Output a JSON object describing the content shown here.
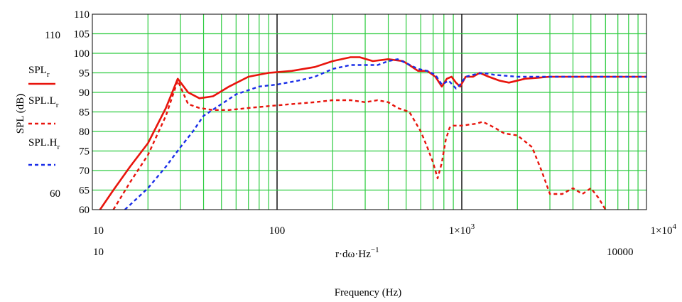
{
  "chart_data": {
    "type": "line",
    "ylabel": "SPL (dB)",
    "xlabel_expr": "r·dω·Hz",
    "xlabel_exp": "−1",
    "xlabel": "Frequency (Hz)",
    "xscale": "log",
    "xlim": [
      10,
      10000
    ],
    "ylim": [
      60,
      110
    ],
    "grid": true,
    "x_ticks": [
      {
        "value": 10,
        "label": "10"
      },
      {
        "value": 100,
        "label": "100"
      },
      {
        "value": 1000,
        "label": "1×10",
        "sup": "3"
      },
      {
        "value": 10000,
        "label": "1×10",
        "sup": "4"
      }
    ],
    "y_ticks": [
      "60",
      "65",
      "70",
      "75",
      "80",
      "85",
      "90",
      "95",
      "100",
      "105",
      "110"
    ],
    "extra_labels": {
      "x_left": "10",
      "x_right": "10000",
      "y_110": "110",
      "y_60": "60"
    },
    "colors": {
      "grid": "#2ecc40",
      "major_grid": "#000000",
      "red": "#e8140c",
      "blue": "#1a2ee8"
    },
    "series": [
      {
        "name": "SPL",
        "sub": "r",
        "style": "solid",
        "color": "#e8140c",
        "x": [
          11,
          13,
          16,
          20,
          25,
          29,
          33,
          38,
          45,
          55,
          70,
          90,
          120,
          160,
          200,
          250,
          280,
          330,
          400,
          480,
          520,
          580,
          650,
          720,
          780,
          830,
          880,
          930,
          980,
          1050,
          1150,
          1250,
          1400,
          1600,
          1800,
          2200,
          3000,
          5000,
          10000
        ],
        "y": [
          60,
          65,
          71,
          77,
          86,
          93.5,
          90,
          88.5,
          89,
          91.5,
          94,
          95,
          95.5,
          96.5,
          98,
          99,
          99,
          98,
          98.5,
          98,
          97,
          95.5,
          95.5,
          94,
          91.5,
          93.5,
          94,
          92.5,
          91.5,
          94,
          94,
          95,
          94,
          93,
          92.5,
          93.5,
          94,
          94,
          94
        ]
      },
      {
        "name": "SPL.L",
        "sub": "r",
        "style": "dashed",
        "color": "#e8140c",
        "x": [
          13,
          16,
          20,
          25,
          29,
          33,
          38,
          45,
          55,
          70,
          90,
          120,
          160,
          200,
          250,
          300,
          350,
          400,
          450,
          520,
          600,
          650,
          700,
          740,
          780,
          820,
          860,
          900,
          1000,
          1200,
          1300,
          1500,
          1700,
          2000,
          2400,
          2700,
          3000,
          3500,
          4000,
          4500,
          5000,
          5500,
          6000
        ],
        "y": [
          60,
          67,
          74,
          84,
          93,
          87,
          86,
          85.5,
          85.5,
          86,
          86.5,
          87,
          87.5,
          88,
          88,
          87.5,
          88,
          87.5,
          86,
          85,
          80,
          76,
          72,
          68,
          72,
          78,
          81,
          81.5,
          81.5,
          82,
          82.5,
          81,
          79.5,
          79,
          76,
          70,
          64,
          64,
          65.5,
          64,
          65.5,
          63,
          60
        ]
      },
      {
        "name": "SPL.H",
        "sub": "r",
        "style": "dashed",
        "color": "#1a2ee8",
        "x": [
          15,
          20,
          25,
          30,
          35,
          40,
          50,
          60,
          80,
          100,
          130,
          160,
          200,
          250,
          300,
          350,
          400,
          450,
          500,
          580,
          650,
          720,
          780,
          850,
          930,
          980,
          1050,
          1150,
          1300,
          1500,
          2000,
          3000,
          5000,
          10000
        ],
        "y": [
          60,
          65.5,
          71,
          76,
          80,
          84,
          87,
          89.5,
          91.5,
          92,
          93,
          94,
          96,
          97,
          97,
          97,
          98,
          98.5,
          97.5,
          96,
          95.5,
          94.5,
          92,
          93,
          91,
          92,
          94,
          94.5,
          95,
          94.5,
          94,
          94,
          94,
          94
        ]
      }
    ]
  }
}
